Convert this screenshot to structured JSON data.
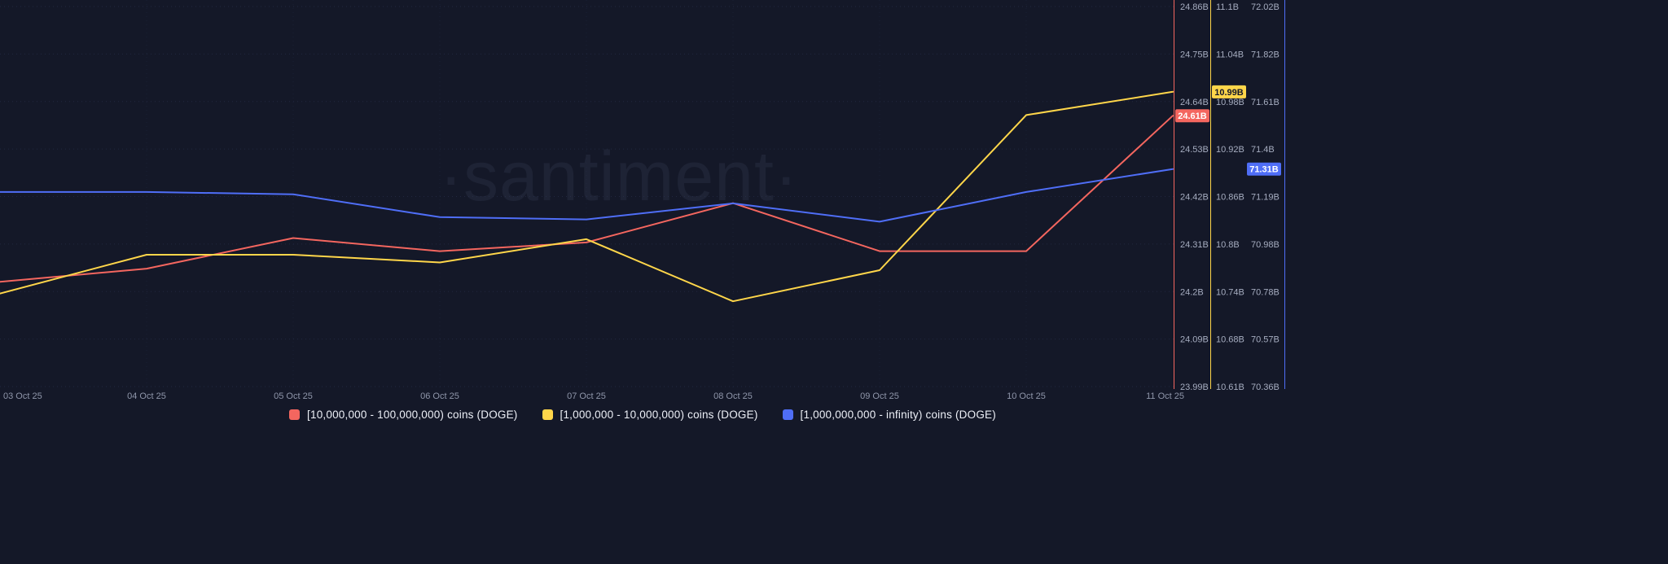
{
  "watermark": "·santiment·",
  "colors": {
    "background": "#141828",
    "grid": "#2b3452",
    "tick_text": "#a6adc0",
    "date_text": "#8f96aa",
    "legend_text": "#edf0f7",
    "red": "#f4665f",
    "yellow": "#ffd64a",
    "blue": "#4f6ef7"
  },
  "chart_data": {
    "type": "line",
    "unit": "B",
    "grid": "dotted",
    "legend_position": "bottom",
    "x": [
      "03 Oct 25",
      "04 Oct 25",
      "05 Oct 25",
      "06 Oct 25",
      "07 Oct 25",
      "08 Oct 25",
      "09 Oct 25",
      "10 Oct 25",
      "11 Oct 25"
    ],
    "series": [
      {
        "name": "[10,000,000 - 100,000,000) coins (DOGE)",
        "color": "#f4665f",
        "axis": 0,
        "values": [
          24.23,
          24.26,
          24.33,
          24.3,
          24.32,
          24.41,
          24.3,
          24.3,
          24.61
        ],
        "last_value_label": "24.61B",
        "badge_text_color": "#ffffff"
      },
      {
        "name": "[1,000,000 - 10,000,000) coins (DOGE)",
        "color": "#ffd64a",
        "axis": 1,
        "values": [
          10.73,
          10.78,
          10.78,
          10.77,
          10.8,
          10.72,
          10.76,
          10.96,
          10.99
        ],
        "last_value_label": "10.99B",
        "badge_text_color": "#12172b"
      },
      {
        "name": "[1,000,000,000 - infinity) coins (DOGE)",
        "color": "#4f6ef7",
        "axis": 2,
        "values": [
          71.21,
          71.21,
          71.2,
          71.1,
          71.09,
          71.16,
          71.08,
          71.21,
          71.31
        ],
        "last_value_label": "71.31B",
        "badge_text_color": "#ffffff"
      }
    ],
    "axes": [
      {
        "side": "right",
        "color": "#f4665f",
        "min": 23.99,
        "max": 24.86,
        "ticks": [
          "24.86B",
          "24.75B",
          "24.64B",
          "24.53B",
          "24.42B",
          "24.31B",
          "24.2B",
          "24.09B",
          "23.99B"
        ]
      },
      {
        "side": "right",
        "color": "#ffd64a",
        "min": 10.61,
        "max": 11.1,
        "ticks": [
          "11.1B",
          "11.04B",
          "10.98B",
          "10.92B",
          "10.86B",
          "10.8B",
          "10.74B",
          "10.68B",
          "10.61B"
        ]
      },
      {
        "side": "right",
        "color": "#4f6ef7",
        "min": 70.36,
        "max": 72.02,
        "ticks": [
          "72.02B",
          "71.82B",
          "71.61B",
          "71.4B",
          "71.19B",
          "70.98B",
          "70.78B",
          "70.57B",
          "70.36B"
        ]
      }
    ]
  }
}
